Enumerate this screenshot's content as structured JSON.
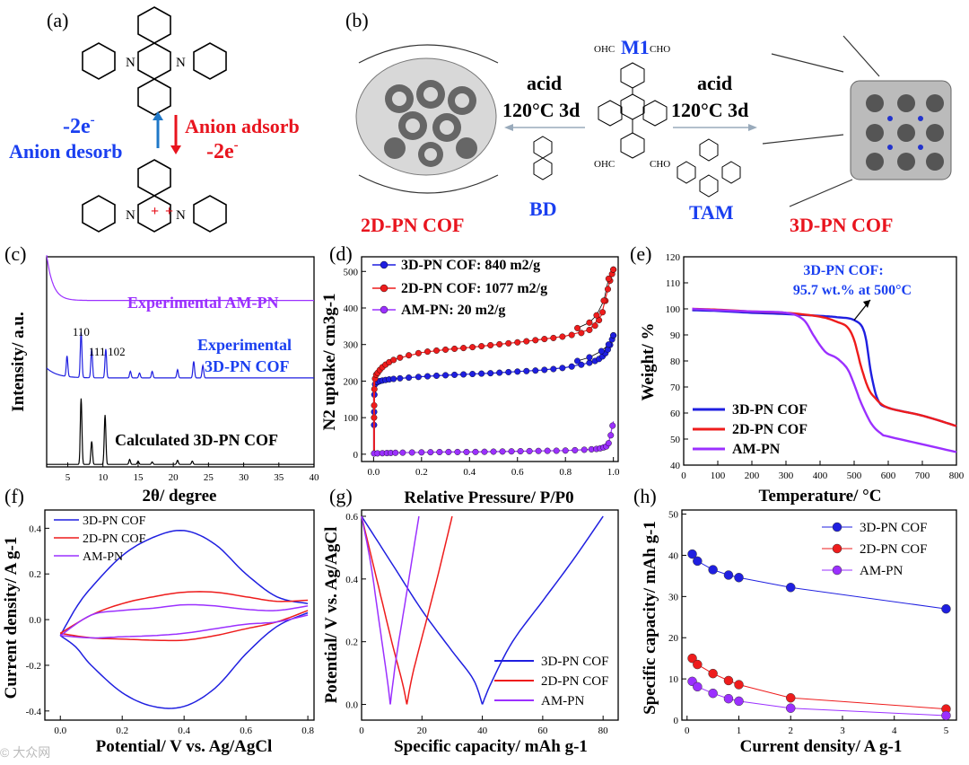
{
  "panels": {
    "a": {
      "label": "(a)",
      "top_arrow_text": "-2e",
      "anion_desorb": "Anion desorb",
      "anion_adsorb": "Anion adsorb",
      "bottom_arrow_text": "-2e",
      "superscript": "-",
      "n_atom": "N",
      "plus": "+"
    },
    "b": {
      "label": "(b)",
      "left_conditions": [
        "acid",
        "120°C 3d"
      ],
      "right_conditions": [
        "acid",
        "120°C 3d"
      ],
      "monomer": "M1",
      "left_linker": "BD",
      "right_linker": "TAM",
      "left_product": "2D-PN COF",
      "right_product": "3D-PN COF",
      "groups": {
        "cho": "OHC",
        "cho_r": "CHO",
        "nh2": "NH2"
      }
    },
    "c": {
      "label": "(c)"
    },
    "d": {
      "label": "(d)"
    },
    "e": {
      "label": "(e)"
    },
    "f": {
      "label": "(f)"
    },
    "g": {
      "label": "(g)"
    },
    "h": {
      "label": "(h)"
    }
  },
  "colors": {
    "blue": "#1f1fe0",
    "red": "#ee1c1c",
    "purple": "#9b30ff",
    "black": "#000000",
    "title_blue": "#1a3ff0",
    "title_red": "#e8141e"
  },
  "watermark": "© 大众网",
  "chart_data": [
    {
      "id": "c",
      "type": "line",
      "title": "",
      "xlabel": "2θ/ degree",
      "ylabel": "Intensity/ a.u.",
      "xlim": [
        2,
        40
      ],
      "xticks": [
        5,
        10,
        15,
        20,
        25,
        30,
        35,
        40
      ],
      "series": [
        {
          "name": "Experimental AM-PN",
          "color": "purple",
          "offset": 2.0,
          "peaks": []
        },
        {
          "name": "Experimental 3D-PN COF",
          "color": "blue",
          "offset": 1.05,
          "peaks": [
            [
              4.9,
              0.25
            ],
            [
              6.9,
              0.55
            ],
            [
              8.4,
              0.35
            ],
            [
              10.4,
              0.35
            ],
            [
              13.9,
              0.08
            ],
            [
              15.2,
              0.06
            ],
            [
              17.0,
              0.08
            ],
            [
              20.6,
              0.1
            ],
            [
              22.9,
              0.2
            ],
            [
              24.2,
              0.15
            ]
          ]
        },
        {
          "name": "Calculated 3D-PN COF",
          "color": "black",
          "offset": 0.0,
          "peaks": [
            [
              6.9,
              0.8
            ],
            [
              8.4,
              0.28
            ],
            [
              10.3,
              0.6
            ],
            [
              13.8,
              0.06
            ],
            [
              15.0,
              0.04
            ],
            [
              17.0,
              0.03
            ],
            [
              20.6,
              0.05
            ],
            [
              22.7,
              0.04
            ]
          ]
        }
      ],
      "peak_labels": [
        {
          "text": "110",
          "x": 6.9
        },
        {
          "text": "111",
          "x": 8.4
        },
        {
          "text": "102",
          "x": 10.4
        }
      ],
      "legend": [
        "Experimental AM-PN",
        "Experimental 3D-PN COF",
        "Calculated 3D-PN COF"
      ],
      "legend_lines": [
        "Experimental AM-PN",
        "Experimental",
        "3D-PN COF",
        "Calculated 3D-PN COF"
      ]
    },
    {
      "id": "d",
      "type": "line",
      "xlabel": "Relative Pressure/ P/P0",
      "ylabel": "N2 uptake/ cm3g-1",
      "xlim": [
        -0.05,
        1.02
      ],
      "ylim": [
        -20,
        540
      ],
      "xticks": [
        0.0,
        0.2,
        0.4,
        0.6,
        0.8,
        1.0
      ],
      "yticks": [
        0,
        100,
        200,
        300,
        400,
        500
      ],
      "series": [
        {
          "name": "3D-PN COF: 840 m2/g",
          "color": "blue",
          "ads": [
            [
              0.002,
              80
            ],
            [
              0.005,
              185
            ],
            [
              0.02,
              198
            ],
            [
              0.05,
              203
            ],
            [
              0.1,
              207
            ],
            [
              0.2,
              212
            ],
            [
              0.3,
              216
            ],
            [
              0.4,
              219
            ],
            [
              0.5,
              222
            ],
            [
              0.6,
              226
            ],
            [
              0.7,
              230
            ],
            [
              0.8,
              237
            ],
            [
              0.9,
              250
            ],
            [
              0.95,
              265
            ],
            [
              0.98,
              290
            ],
            [
              1.0,
              325
            ]
          ],
          "des": [
            [
              1.0,
              325
            ],
            [
              0.98,
              300
            ],
            [
              0.95,
              282
            ],
            [
              0.9,
              265
            ],
            [
              0.85,
              255
            ]
          ]
        },
        {
          "name": "2D-PN COF: 1077 m2/g",
          "color": "red",
          "ads": [
            [
              0.002,
              100
            ],
            [
              0.005,
              200
            ],
            [
              0.02,
              225
            ],
            [
              0.05,
              245
            ],
            [
              0.1,
              262
            ],
            [
              0.2,
              278
            ],
            [
              0.3,
              286
            ],
            [
              0.4,
              292
            ],
            [
              0.5,
              299
            ],
            [
              0.6,
              306
            ],
            [
              0.7,
              314
            ],
            [
              0.8,
              323
            ],
            [
              0.9,
              340
            ],
            [
              0.95,
              380
            ],
            [
              0.98,
              460
            ],
            [
              1.0,
              505
            ]
          ],
          "des": [
            [
              1.0,
              505
            ],
            [
              0.98,
              480
            ],
            [
              0.96,
              420
            ],
            [
              0.93,
              380
            ],
            [
              0.9,
              360
            ],
            [
              0.85,
              345
            ]
          ]
        },
        {
          "name": "AM-PN: 20 m2/g",
          "color": "purple",
          "ads": [
            [
              0.002,
              2
            ],
            [
              0.05,
              3
            ],
            [
              0.1,
              4
            ],
            [
              0.2,
              5
            ],
            [
              0.3,
              6
            ],
            [
              0.4,
              6
            ],
            [
              0.5,
              7
            ],
            [
              0.6,
              8
            ],
            [
              0.7,
              9
            ],
            [
              0.8,
              10
            ],
            [
              0.9,
              13
            ],
            [
              0.95,
              17
            ],
            [
              0.98,
              30
            ],
            [
              1.0,
              90
            ]
          ],
          "des": []
        }
      ]
    },
    {
      "id": "e",
      "type": "line",
      "xlabel": "Temperature/ °C",
      "ylabel": "Weight/ %",
      "xlim": [
        0,
        800
      ],
      "ylim": [
        40,
        120
      ],
      "xticks": [
        0,
        100,
        200,
        300,
        400,
        500,
        600,
        700,
        800
      ],
      "yticks": [
        40,
        50,
        60,
        70,
        80,
        90,
        100,
        110,
        120
      ],
      "annotation": [
        "3D-PN COF:",
        "95.7 wt.% at 500°C"
      ],
      "series": [
        {
          "name": "3D-PN COF",
          "color": "blue",
          "x": [
            25,
            100,
            200,
            300,
            400,
            450,
            500,
            530,
            550,
            570,
            600,
            700,
            800
          ],
          "y": [
            99.5,
            99.2,
            98.5,
            98.0,
            97.3,
            96.8,
            95.7,
            91,
            75,
            65,
            62,
            59,
            55
          ]
        },
        {
          "name": "2D-PN COF",
          "color": "red",
          "x": [
            25,
            100,
            200,
            300,
            400,
            450,
            480,
            500,
            520,
            540,
            560,
            600,
            700,
            800
          ],
          "y": [
            100,
            99.7,
            99,
            98.5,
            97,
            95,
            93,
            88,
            78,
            70,
            66,
            62,
            59,
            55
          ]
        },
        {
          "name": "AM-PN",
          "color": "purple",
          "x": [
            25,
            100,
            200,
            300,
            350,
            380,
            400,
            420,
            450,
            480,
            500,
            520,
            550,
            580,
            600,
            700,
            800
          ],
          "y": [
            100,
            99.5,
            99,
            98.5,
            96,
            90,
            86,
            83,
            81,
            77,
            71,
            64,
            56,
            52,
            51,
            48,
            45
          ]
        }
      ]
    },
    {
      "id": "f",
      "type": "line",
      "xlabel": "Potential/ V vs. Ag/AgCl",
      "ylabel": "Current density/ A g-1",
      "xlim": [
        -0.05,
        0.82
      ],
      "ylim": [
        -0.44,
        0.48
      ],
      "xticks": [
        0.0,
        0.2,
        0.4,
        0.6,
        0.8
      ],
      "yticks": [
        -0.4,
        -0.2,
        0.0,
        0.2,
        0.4
      ],
      "series": [
        {
          "name": "3D-PN COF",
          "color": "blue",
          "upper": [
            [
              0.0,
              -0.07
            ],
            [
              0.05,
              0.05
            ],
            [
              0.1,
              0.14
            ],
            [
              0.2,
              0.28
            ],
            [
              0.3,
              0.36
            ],
            [
              0.4,
              0.39
            ],
            [
              0.5,
              0.33
            ],
            [
              0.6,
              0.2
            ],
            [
              0.7,
              0.1
            ],
            [
              0.8,
              0.07
            ]
          ],
          "lower": [
            [
              0.8,
              0.03
            ],
            [
              0.7,
              -0.03
            ],
            [
              0.6,
              -0.15
            ],
            [
              0.5,
              -0.3
            ],
            [
              0.4,
              -0.38
            ],
            [
              0.3,
              -0.38
            ],
            [
              0.2,
              -0.32
            ],
            [
              0.1,
              -0.2
            ],
            [
              0.05,
              -0.12
            ],
            [
              0.0,
              -0.07
            ]
          ]
        },
        {
          "name": "2D-PN COF",
          "color": "red",
          "upper": [
            [
              0.0,
              -0.06
            ],
            [
              0.1,
              0.02
            ],
            [
              0.2,
              0.07
            ],
            [
              0.3,
              0.1
            ],
            [
              0.4,
              0.12
            ],
            [
              0.5,
              0.12
            ],
            [
              0.6,
              0.1
            ],
            [
              0.7,
              0.08
            ],
            [
              0.8,
              0.085
            ]
          ],
          "lower": [
            [
              0.8,
              0.04
            ],
            [
              0.7,
              -0.01
            ],
            [
              0.6,
              -0.04
            ],
            [
              0.5,
              -0.07
            ],
            [
              0.4,
              -0.09
            ],
            [
              0.3,
              -0.09
            ],
            [
              0.2,
              -0.085
            ],
            [
              0.1,
              -0.08
            ],
            [
              0.0,
              -0.06
            ]
          ]
        },
        {
          "name": "AM-PN",
          "color": "purple",
          "upper": [
            [
              0.0,
              -0.07
            ],
            [
              0.1,
              0.02
            ],
            [
              0.2,
              0.04
            ],
            [
              0.3,
              0.05
            ],
            [
              0.4,
              0.065
            ],
            [
              0.5,
              0.06
            ],
            [
              0.6,
              0.045
            ],
            [
              0.7,
              0.04
            ],
            [
              0.8,
              0.06
            ]
          ],
          "lower": [
            [
              0.8,
              0.02
            ],
            [
              0.7,
              -0.01
            ],
            [
              0.6,
              -0.02
            ],
            [
              0.5,
              -0.04
            ],
            [
              0.4,
              -0.06
            ],
            [
              0.3,
              -0.07
            ],
            [
              0.2,
              -0.075
            ],
            [
              0.1,
              -0.08
            ],
            [
              0.0,
              -0.07
            ]
          ]
        }
      ]
    },
    {
      "id": "g",
      "type": "line",
      "xlabel": "Specific capacity/ mAh g-1",
      "ylabel": "Potential/ V vs. Ag/AgCl",
      "xlim": [
        0,
        85
      ],
      "ylim": [
        -0.05,
        0.62
      ],
      "xticks": [
        0,
        20,
        40,
        60,
        80
      ],
      "yticks": [
        0.0,
        0.2,
        0.4,
        0.6
      ],
      "series": [
        {
          "name": "3D-PN COF",
          "color": "blue",
          "discharge": [
            [
              0,
              0.6
            ],
            [
              10,
              0.45
            ],
            [
              20,
              0.3
            ],
            [
              30,
              0.17
            ],
            [
              37,
              0.08
            ],
            [
              40,
              0.0
            ]
          ],
          "charge": [
            [
              40,
              0.0
            ],
            [
              43,
              0.07
            ],
            [
              50,
              0.2
            ],
            [
              60,
              0.33
            ],
            [
              70,
              0.46
            ],
            [
              80,
              0.6
            ]
          ]
        },
        {
          "name": "2D-PN COF",
          "color": "red",
          "discharge": [
            [
              0,
              0.6
            ],
            [
              5,
              0.4
            ],
            [
              10,
              0.2
            ],
            [
              13.5,
              0.07
            ],
            [
              15,
              0.0
            ]
          ],
          "charge": [
            [
              15,
              0.0
            ],
            [
              17,
              0.1
            ],
            [
              21,
              0.25
            ],
            [
              25.5,
              0.42
            ],
            [
              30,
              0.6
            ]
          ]
        },
        {
          "name": "AM-PN",
          "color": "purple",
          "discharge": [
            [
              0,
              0.6
            ],
            [
              3,
              0.45
            ],
            [
              6,
              0.25
            ],
            [
              8.5,
              0.08
            ],
            [
              9.5,
              0.0
            ]
          ],
          "charge": [
            [
              9.5,
              0.0
            ],
            [
              11.5,
              0.15
            ],
            [
              14,
              0.3
            ],
            [
              16.5,
              0.45
            ],
            [
              19,
              0.6
            ]
          ]
        }
      ]
    },
    {
      "id": "h",
      "type": "scatter",
      "xlabel": "Current density/ A g-1",
      "ylabel": "Specific capacity/ mAh g-1",
      "xlim": [
        -0.1,
        5.2
      ],
      "ylim": [
        0,
        51
      ],
      "xticks": [
        0,
        1,
        2,
        3,
        4,
        5
      ],
      "yticks": [
        0,
        10,
        20,
        30,
        40,
        50
      ],
      "series": [
        {
          "name": "3D-PN COF",
          "color": "blue",
          "x": [
            0.1,
            0.2,
            0.5,
            0.8,
            1.0,
            2.0,
            5.0
          ],
          "y": [
            40.3,
            38.6,
            36.5,
            35.2,
            34.6,
            32.2,
            27.0
          ]
        },
        {
          "name": "2D-PN COF",
          "color": "red",
          "x": [
            0.1,
            0.2,
            0.5,
            0.8,
            1.0,
            2.0,
            5.0
          ],
          "y": [
            15.0,
            13.5,
            11.3,
            9.6,
            8.6,
            5.4,
            2.7
          ]
        },
        {
          "name": "AM-PN",
          "color": "purple",
          "x": [
            0.1,
            0.2,
            0.5,
            0.8,
            1.0,
            2.0,
            5.0
          ],
          "y": [
            9.4,
            8.1,
            6.5,
            5.2,
            4.6,
            2.9,
            1.1
          ]
        }
      ]
    }
  ]
}
